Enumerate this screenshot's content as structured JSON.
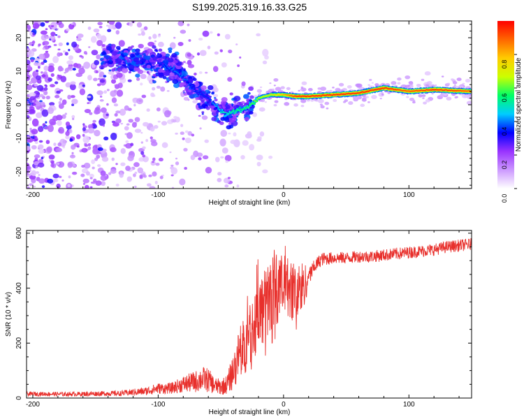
{
  "title": "S199.2025.319.16.33.G25",
  "chart_data": [
    {
      "type": "heatmap",
      "title": "S199.2025.319.16.33.G25",
      "xlabel": "Height of straight line (km)",
      "ylabel": "Frequency (Hz)",
      "xlim": [
        -205,
        150
      ],
      "ylim": [
        -25,
        25
      ],
      "xticks": [
        "-200",
        "-100",
        "0",
        "100"
      ],
      "yticks": [
        "-20",
        "-10",
        "0",
        "10",
        "20"
      ],
      "colorbar": {
        "label": "Normalized spectral amplitude",
        "range": [
          0,
          1
        ],
        "ticks": [
          "0.0",
          "0.2",
          "0.4",
          "0.6",
          "0.8"
        ],
        "colors": [
          "#ffffff",
          "#cc99ff",
          "#9933ff",
          "#0000ff",
          "#00ccff",
          "#00ff66",
          "#ccff00",
          "#ffcc00",
          "#ff6600",
          "#ff0000"
        ]
      },
      "ridge": {
        "x": [
          -140,
          -120,
          -100,
          -90,
          -80,
          -70,
          -60,
          -50,
          -45,
          -40,
          -30,
          -20,
          -10,
          0,
          10,
          20,
          40,
          60,
          80,
          100,
          120,
          150
        ],
        "frequency": [
          14,
          13,
          12,
          11,
          8,
          4,
          2,
          -2,
          -3,
          -2,
          -1,
          2,
          3,
          3,
          2.5,
          2.5,
          3,
          3.5,
          5,
          4,
          4.5,
          4
        ],
        "amplitude": [
          0.3,
          0.3,
          0.35,
          0.4,
          0.4,
          0.35,
          0.35,
          0.5,
          0.5,
          0.55,
          0.55,
          0.65,
          0.7,
          0.8,
          0.95,
          0.95,
          0.95,
          0.95,
          0.95,
          0.9,
          0.95,
          0.9
        ]
      }
    },
    {
      "type": "line",
      "xlabel": "Height of straight line (km)",
      "ylabel": "SNR (10 * v/v)",
      "xlim": [
        -205,
        150
      ],
      "ylim": [
        0,
        610
      ],
      "xticks": [
        "-200",
        "-100",
        "0",
        "100"
      ],
      "yticks": [
        "0",
        "200",
        "400",
        "600"
      ],
      "series": [
        {
          "name": "SNR",
          "color": "#e8302c",
          "x": [
            -205,
            -190,
            -170,
            -150,
            -130,
            -110,
            -100,
            -90,
            -80,
            -75,
            -70,
            -65,
            -60,
            -55,
            -50,
            -45,
            -40,
            -35,
            -30,
            -25,
            -20,
            -15,
            -10,
            -5,
            0,
            5,
            10,
            15,
            20,
            25,
            30,
            40,
            50,
            60,
            70,
            80,
            90,
            100,
            110,
            120,
            130,
            140,
            150
          ],
          "values": [
            15,
            15,
            14,
            16,
            17,
            25,
            35,
            35,
            50,
            55,
            60,
            70,
            65,
            45,
            40,
            50,
            100,
            170,
            200,
            250,
            310,
            330,
            380,
            400,
            410,
            400,
            380,
            400,
            440,
            480,
            505,
            510,
            510,
            515,
            515,
            520,
            525,
            530,
            535,
            540,
            550,
            555,
            560
          ],
          "noise": [
            8,
            8,
            8,
            9,
            10,
            15,
            20,
            20,
            30,
            35,
            40,
            45,
            45,
            30,
            30,
            35,
            70,
            90,
            110,
            120,
            130,
            140,
            150,
            130,
            110,
            110,
            120,
            100,
            40,
            25,
            25,
            22,
            22,
            22,
            22,
            22,
            22,
            22,
            22,
            22,
            22,
            22,
            22
          ]
        }
      ]
    }
  ]
}
